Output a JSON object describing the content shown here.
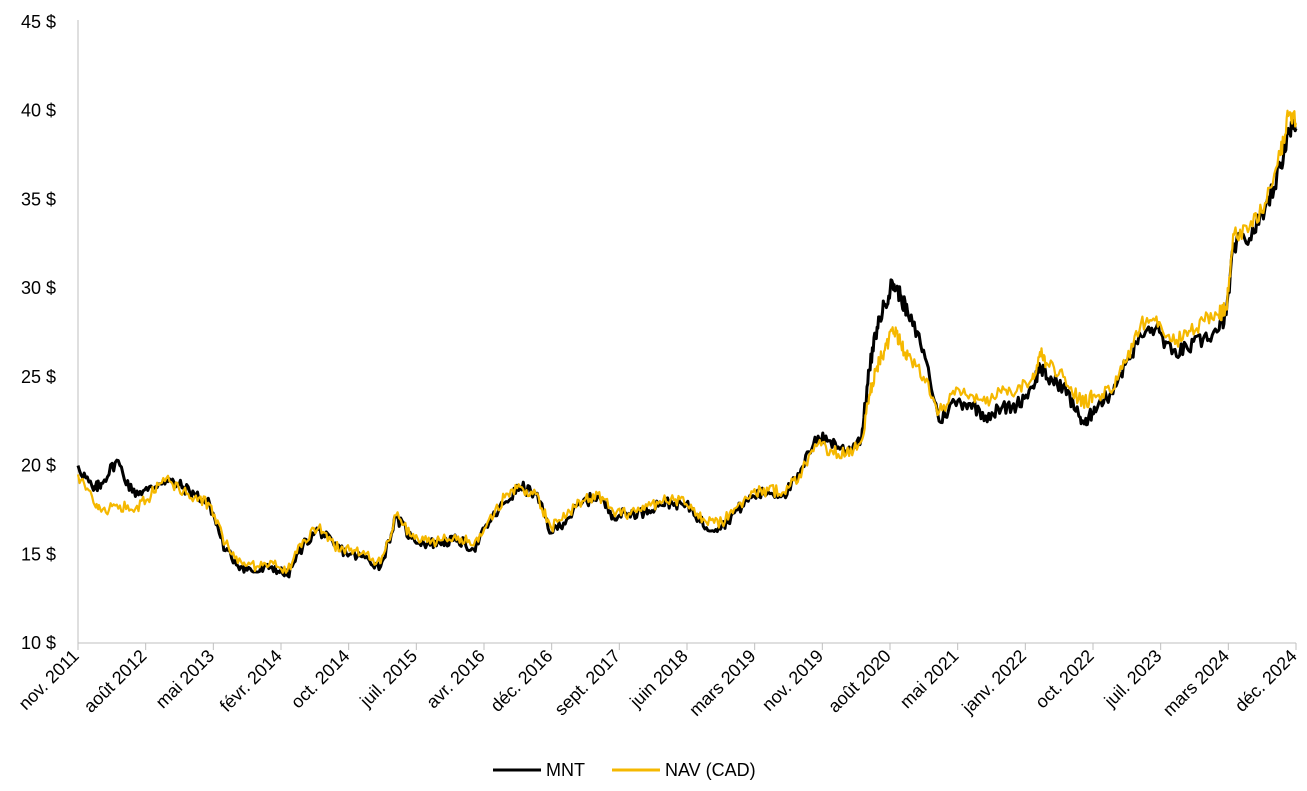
{
  "chart_data": {
    "type": "line",
    "title": "",
    "xlabel": "",
    "ylabel": "",
    "ylim": [
      10,
      45
    ],
    "y_ticks": [
      "10 $",
      "15 $",
      "20 $",
      "25 $",
      "30 $",
      "35 $",
      "40 $",
      "45 $"
    ],
    "x_ticks": [
      "nov. 2011",
      "août 2012",
      "mai 2013",
      "févr. 2014",
      "oct. 2014",
      "juil. 2015",
      "avr. 2016",
      "déc. 2016",
      "sept. 2017",
      "juin 2018",
      "mars 2019",
      "nov. 2019",
      "août 2020",
      "mai 2021",
      "janv. 2022",
      "oct. 2022",
      "juil. 2023",
      "mars 2024",
      "déc. 2024"
    ],
    "x": [
      "2011-11",
      "2012-01",
      "2012-02",
      "2012-04",
      "2012-06",
      "2012-08",
      "2012-10",
      "2012-12",
      "2013-02",
      "2013-04",
      "2013-06",
      "2013-08",
      "2013-10",
      "2013-12",
      "2014-02",
      "2014-04",
      "2014-06",
      "2014-08",
      "2014-10",
      "2014-12",
      "2015-02",
      "2015-04",
      "2015-06",
      "2015-08",
      "2015-10",
      "2015-12",
      "2016-02",
      "2016-04",
      "2016-06",
      "2016-08",
      "2016-10",
      "2016-12",
      "2017-02",
      "2017-04",
      "2017-06",
      "2017-08",
      "2017-10",
      "2017-12",
      "2018-02",
      "2018-04",
      "2018-06",
      "2018-08",
      "2018-10",
      "2018-12",
      "2019-02",
      "2019-04",
      "2019-06",
      "2019-08",
      "2019-10",
      "2019-12",
      "2020-02",
      "2020-04",
      "2020-05",
      "2020-06",
      "2020-07",
      "2020-08",
      "2020-09",
      "2020-10",
      "2020-12",
      "2021-02",
      "2021-04",
      "2021-06",
      "2021-08",
      "2021-10",
      "2021-12",
      "2022-02",
      "2022-03",
      "2022-04",
      "2022-06",
      "2022-08",
      "2022-09",
      "2022-10",
      "2022-12",
      "2023-02",
      "2023-04",
      "2023-06",
      "2023-08",
      "2023-10",
      "2023-12",
      "2024-02",
      "2024-03",
      "2024-04",
      "2024-06",
      "2024-08",
      "2024-10",
      "2024-11",
      "2024-12"
    ],
    "series": [
      {
        "name": "MNT",
        "color": "#000000",
        "values": [
          20.0,
          18.6,
          19.0,
          20.3,
          18.5,
          18.6,
          19.2,
          18.9,
          18.4,
          17.8,
          15.2,
          14.3,
          14.0,
          14.3,
          13.8,
          15.5,
          16.4,
          15.5,
          15.0,
          14.8,
          14.3,
          17.1,
          15.9,
          15.6,
          15.7,
          15.8,
          15.3,
          16.8,
          17.9,
          18.8,
          18.4,
          16.2,
          17.0,
          17.9,
          18.3,
          17.2,
          17.3,
          17.4,
          17.9,
          17.9,
          17.6,
          16.5,
          16.6,
          17.5,
          18.3,
          18.5,
          18.4,
          19.4,
          21.6,
          21.4,
          20.8,
          21.6,
          25.4,
          27.8,
          29.1,
          30.3,
          29.6,
          28.5,
          26.5,
          22.5,
          23.6,
          23.5,
          22.8,
          23.2,
          23.4,
          24.4,
          25.6,
          24.9,
          24.5,
          22.8,
          22.3,
          23.3,
          24.0,
          25.7,
          27.3,
          27.8,
          26.3,
          26.6,
          27.1,
          27.6,
          28.5,
          32.5,
          32.8,
          34.5,
          36.8,
          39.0,
          39.0
        ]
      },
      {
        "name": "NAV (CAD)",
        "color": "#f5b800",
        "values": [
          19.5,
          17.9,
          17.4,
          17.8,
          17.5,
          18.1,
          19.3,
          18.7,
          18.2,
          17.8,
          15.6,
          14.6,
          14.3,
          14.6,
          14.1,
          15.8,
          16.5,
          15.5,
          15.2,
          15.0,
          14.5,
          17.2,
          16.0,
          15.7,
          15.8,
          16.0,
          15.5,
          17.0,
          18.2,
          18.8,
          18.4,
          16.5,
          17.2,
          18.0,
          18.4,
          17.4,
          17.3,
          17.5,
          18.0,
          18.1,
          17.8,
          16.8,
          16.8,
          17.7,
          18.5,
          18.6,
          18.5,
          19.5,
          21.2,
          20.9,
          20.6,
          21.4,
          24.0,
          25.6,
          26.5,
          27.8,
          26.9,
          26.2,
          25.0,
          23.0,
          24.0,
          24.0,
          23.5,
          24.1,
          24.2,
          24.9,
          26.4,
          25.7,
          25.0,
          23.8,
          23.6,
          24.0,
          24.2,
          25.8,
          28.0,
          28.4,
          27.0,
          27.3,
          28.2,
          28.5,
          28.8,
          33.0,
          33.4,
          34.8,
          37.5,
          39.7,
          39.3
        ]
      }
    ],
    "legend_position": "bottom-center",
    "grid": false
  }
}
